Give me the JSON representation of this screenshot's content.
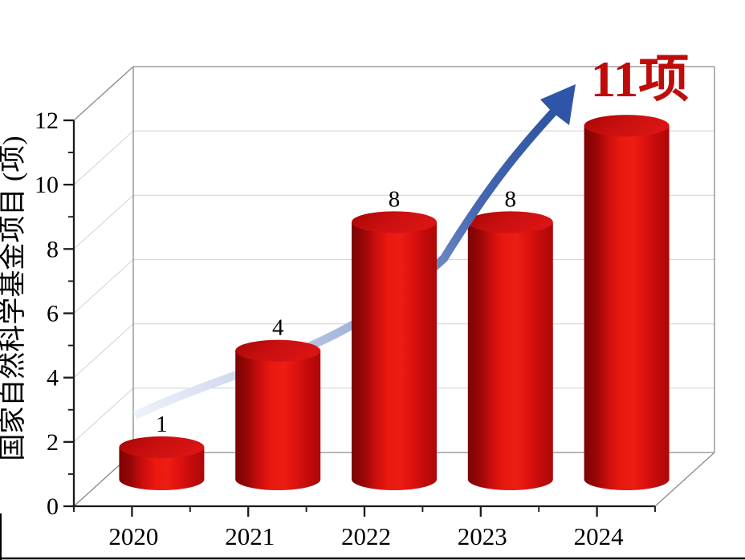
{
  "chart_data": {
    "type": "bar",
    "style": "3d-cylinder",
    "title": "",
    "categories": [
      "2020",
      "2021",
      "2022",
      "2023",
      "2024"
    ],
    "values": [
      1,
      4,
      8,
      8,
      11
    ],
    "bar_value_labels": [
      "1",
      "4",
      "8",
      "8",
      ""
    ],
    "ylabel": "国家自然科学基金项目 (项)",
    "xlabel": "",
    "ylim": [
      0,
      12
    ],
    "y_ticks": [
      0,
      2,
      4,
      6,
      8,
      10,
      12
    ],
    "y_minor_ticks": [
      1,
      3,
      5,
      7,
      9,
      11
    ],
    "grid": true,
    "legend": "none",
    "annotation": {
      "text": "11项",
      "color": "#c00b0b"
    },
    "trend_arrow": {
      "direction": "up-right",
      "gradient": [
        "#eef2fa",
        "#c9d3ea",
        "#93a8d3",
        "#4568b2",
        "#2b529f"
      ],
      "head_color": "#2e55a7"
    },
    "colors": {
      "bar_body": [
        "#7b0303",
        "#9a0606",
        "#cd0e0e",
        "#e9190f",
        "#ec1d12",
        "#dd1110",
        "#c20b0b",
        "#ad0707"
      ],
      "bar_top": [
        "#a50505",
        "#c90f0f",
        "#da1414"
      ],
      "axis": "#1a1a1a",
      "frame": "#8a8a8a",
      "grid": "#d6d6d6",
      "text": "#000000",
      "background": "#ffffff",
      "page_bottom_border": "#000000"
    }
  }
}
